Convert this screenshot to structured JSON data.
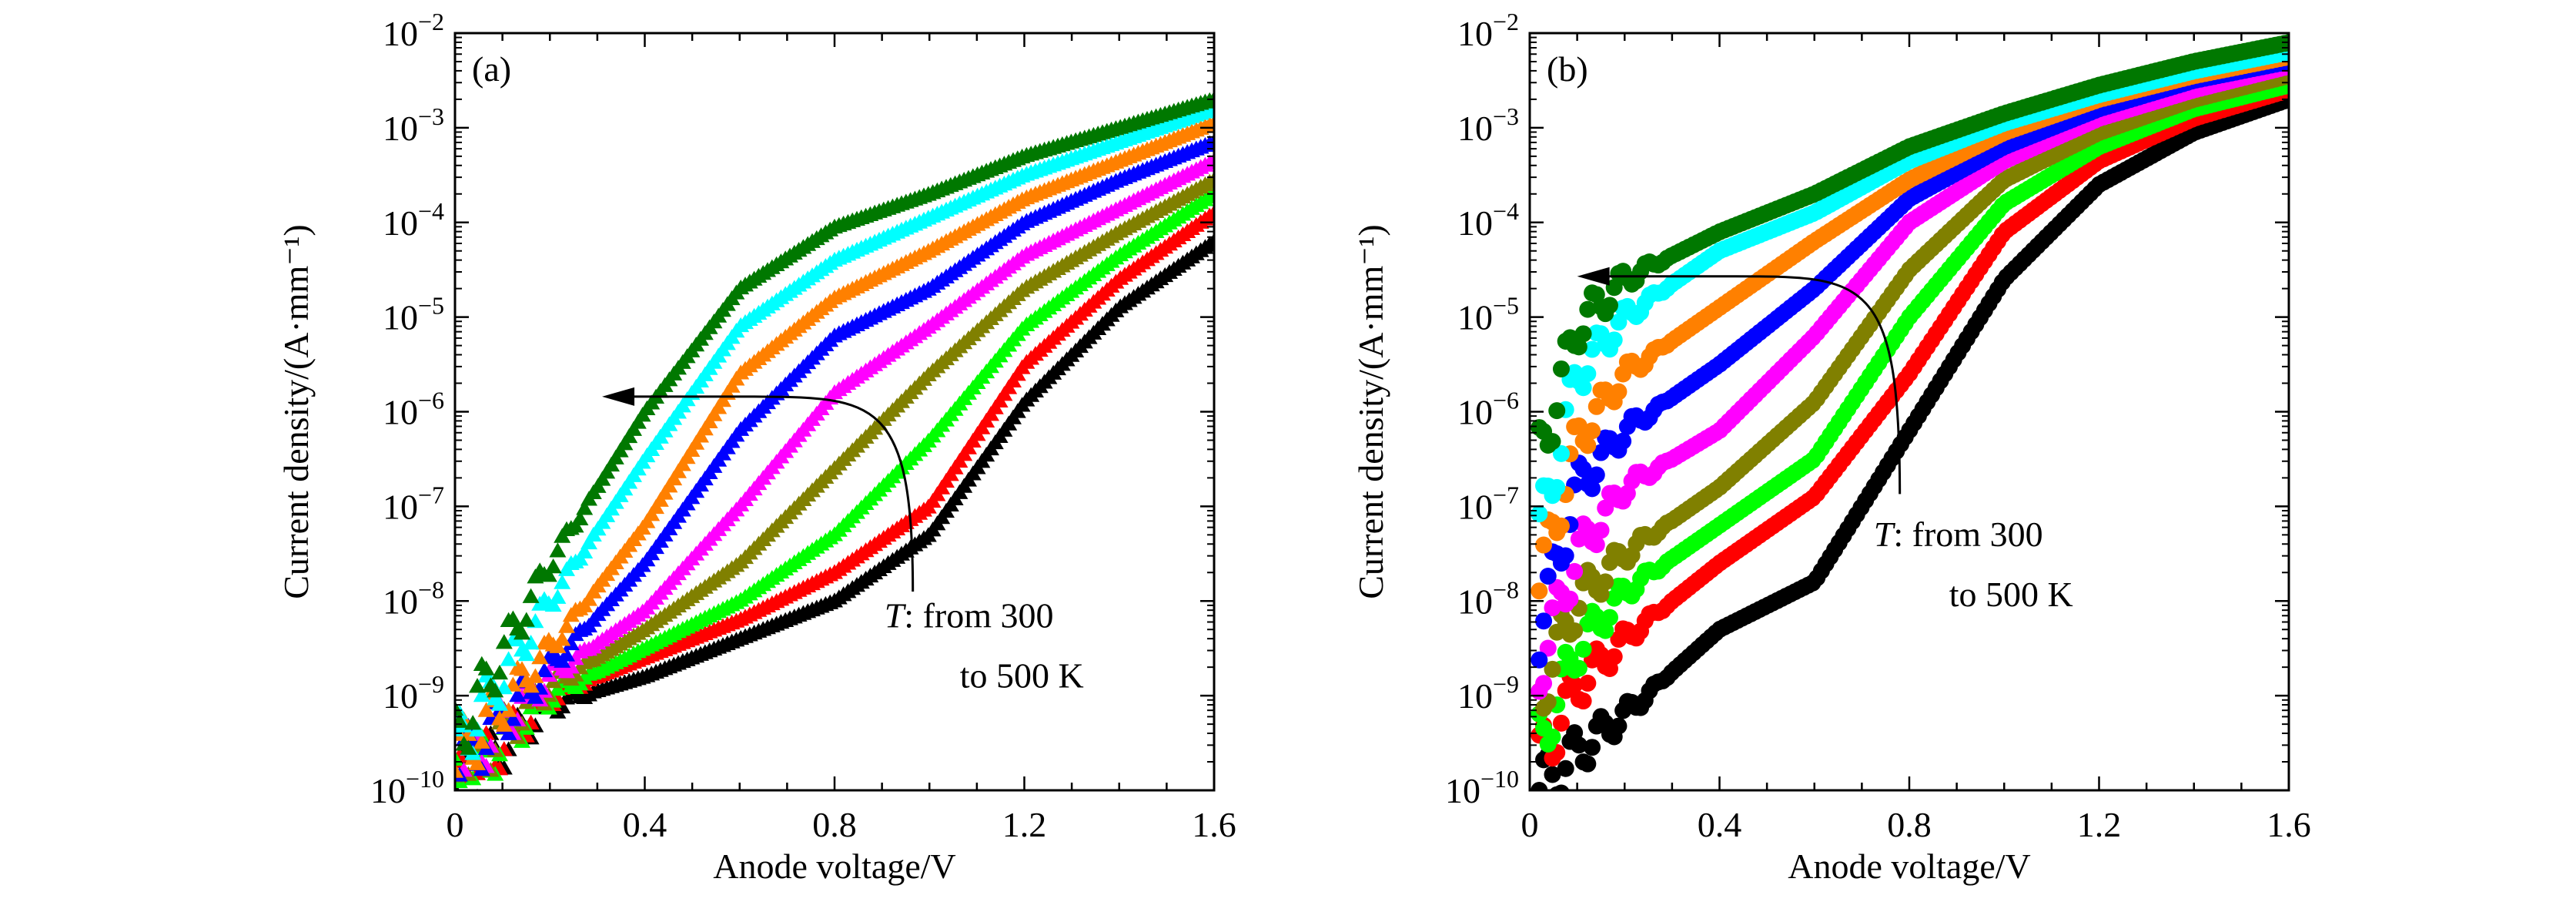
{
  "chart_data": [
    {
      "panel_label": "(a)",
      "type": "scatter",
      "marker": "triangle",
      "xlabel": "Anode voltage/V",
      "ylabel": "Current density/(A·mm⁻¹)",
      "xlim": [
        0,
        1.6
      ],
      "ylim": [
        1e-10,
        0.01
      ],
      "yscale": "log",
      "xticks": [
        "0",
        "0.4",
        "0.8",
        "1.2",
        "1.6"
      ],
      "yticks": [
        {
          "base": "10",
          "exp": "−2"
        },
        {
          "base": "10",
          "exp": "−3"
        },
        {
          "base": "10",
          "exp": "−4"
        },
        {
          "base": "10",
          "exp": "−5"
        },
        {
          "base": "10",
          "exp": "−6"
        },
        {
          "base": "10",
          "exp": "−7"
        },
        {
          "base": "10",
          "exp": "−8"
        },
        {
          "base": "10",
          "exp": "−9"
        },
        {
          "base": "10",
          "exp": "−10"
        }
      ],
      "annotation": {
        "line1_italic": "T",
        "line1_rest": ": from 300",
        "line2": "to 500 K"
      },
      "x": [
        0,
        0.2,
        0.4,
        0.6,
        0.8,
        1.0,
        1.2,
        1.4,
        1.6
      ],
      "series": [
        {
          "color": "#000000",
          "log10_values": [
            -10,
            -9.1,
            -8.8,
            -8.4,
            -8.0,
            -7.3,
            -5.9,
            -4.9,
            -4.2
          ]
        },
        {
          "color": "#ff0000",
          "log10_values": [
            -10,
            -9.0,
            -8.6,
            -8.2,
            -7.7,
            -7.0,
            -5.5,
            -4.6,
            -3.9
          ]
        },
        {
          "color": "#00ff00",
          "log10_values": [
            -10,
            -9.0,
            -8.5,
            -8.0,
            -7.3,
            -6.3,
            -5.1,
            -4.35,
            -3.7
          ]
        },
        {
          "color": "#808000",
          "log10_values": [
            -9.9,
            -8.9,
            -8.3,
            -7.6,
            -6.6,
            -5.6,
            -4.7,
            -4.1,
            -3.55
          ]
        },
        {
          "color": "#ff00ff",
          "log10_values": [
            -9.8,
            -8.8,
            -8.1,
            -7.0,
            -5.8,
            -5.1,
            -4.35,
            -3.85,
            -3.35
          ]
        },
        {
          "color": "#0000ff",
          "log10_values": [
            -9.8,
            -8.7,
            -7.6,
            -6.2,
            -5.2,
            -4.7,
            -4.0,
            -3.55,
            -3.15
          ]
        },
        {
          "color": "#ff8000",
          "log10_values": [
            -9.7,
            -8.5,
            -7.2,
            -5.6,
            -4.8,
            -4.3,
            -3.75,
            -3.35,
            -2.95
          ]
        },
        {
          "color": "#00ffff",
          "log10_values": [
            -9.6,
            -8.0,
            -6.5,
            -5.1,
            -4.4,
            -3.95,
            -3.5,
            -3.15,
            -2.8
          ]
        },
        {
          "color": "#007800",
          "log10_values": [
            -9.5,
            -7.6,
            -6.0,
            -4.7,
            -4.05,
            -3.7,
            -3.3,
            -3.0,
            -2.7
          ]
        }
      ]
    },
    {
      "panel_label": "(b)",
      "type": "scatter",
      "marker": "circle",
      "xlabel": "Anode voltage/V",
      "ylabel": "Current density/(A·mm⁻¹)",
      "xlim": [
        0,
        1.6
      ],
      "ylim": [
        1e-10,
        0.01
      ],
      "yscale": "log",
      "xticks": [
        "0",
        "0.4",
        "0.8",
        "1.2",
        "1.6"
      ],
      "yticks": [
        {
          "base": "10",
          "exp": "−2"
        },
        {
          "base": "10",
          "exp": "−3"
        },
        {
          "base": "10",
          "exp": "−4"
        },
        {
          "base": "10",
          "exp": "−5"
        },
        {
          "base": "10",
          "exp": "−6"
        },
        {
          "base": "10",
          "exp": "−7"
        },
        {
          "base": "10",
          "exp": "−8"
        },
        {
          "base": "10",
          "exp": "−9"
        },
        {
          "base": "10",
          "exp": "−10"
        }
      ],
      "annotation": {
        "line1_italic": "T",
        "line1_rest": ": from 300",
        "line2": "to 500 K"
      },
      "x": [
        0.02,
        0.1,
        0.2,
        0.4,
        0.6,
        0.8,
        1.0,
        1.2,
        1.4,
        1.6
      ],
      "series": [
        {
          "color": "#000000",
          "log10_values": [
            -10,
            -9.6,
            -9.2,
            -8.3,
            -7.8,
            -6.2,
            -4.6,
            -3.6,
            -3.05,
            -2.7
          ]
        },
        {
          "color": "#ff0000",
          "log10_values": [
            -9.7,
            -8.9,
            -8.4,
            -7.6,
            -6.9,
            -5.6,
            -4.1,
            -3.35,
            -2.9,
            -2.6
          ]
        },
        {
          "color": "#00ff00",
          "log10_values": [
            -9.5,
            -8.5,
            -7.9,
            -7.2,
            -6.5,
            -5.0,
            -3.8,
            -3.2,
            -2.8,
            -2.55
          ]
        },
        {
          "color": "#808000",
          "log10_values": [
            -9.0,
            -8.0,
            -7.5,
            -6.8,
            -5.9,
            -4.5,
            -3.55,
            -3.05,
            -2.7,
            -2.45
          ]
        },
        {
          "color": "#ff00ff",
          "log10_values": [
            -8.7,
            -7.5,
            -6.8,
            -6.2,
            -5.2,
            -4.0,
            -3.35,
            -2.9,
            -2.6,
            -2.35
          ]
        },
        {
          "color": "#0000ff",
          "log10_values": [
            -8.3,
            -6.8,
            -6.2,
            -5.5,
            -4.7,
            -3.75,
            -3.2,
            -2.8,
            -2.5,
            -2.3
          ]
        },
        {
          "color": "#ff8000",
          "log10_values": [
            -7.8,
            -6.3,
            -5.6,
            -4.9,
            -4.2,
            -3.55,
            -3.05,
            -2.7,
            -2.45,
            -2.25
          ]
        },
        {
          "color": "#00ffff",
          "log10_values": [
            -7.3,
            -5.6,
            -5.0,
            -4.3,
            -3.9,
            -3.35,
            -2.95,
            -2.65,
            -2.4,
            -2.2
          ]
        },
        {
          "color": "#007800",
          "log10_values": [
            -6.5,
            -5.1,
            -4.6,
            -4.1,
            -3.7,
            -3.2,
            -2.85,
            -2.55,
            -2.3,
            -2.1
          ]
        }
      ]
    }
  ]
}
